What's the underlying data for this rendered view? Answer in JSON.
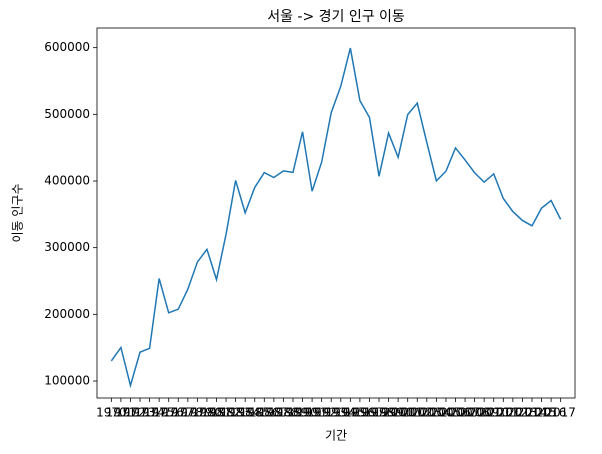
{
  "chart_data": {
    "type": "line",
    "title": "서울 -> 경기 인구 이동",
    "x_label": "기간",
    "y_label": "이동 인구수",
    "categories": [
      "1970",
      "1971",
      "1972",
      "1973",
      "1974",
      "1975",
      "1976",
      "1977",
      "1978",
      "1979",
      "1980",
      "1981",
      "1982",
      "1983",
      "1984",
      "1985",
      "1986",
      "1987",
      "1988",
      "1989",
      "1990",
      "1991",
      "1992",
      "1993",
      "1994",
      "1995",
      "1996",
      "1997",
      "1998",
      "1999",
      "2000",
      "2001",
      "2002",
      "2003",
      "2004",
      "2005",
      "2006",
      "2007",
      "2008",
      "2009",
      "2010",
      "2011",
      "2012",
      "2013",
      "2014",
      "2015",
      "2016",
      "2017"
    ],
    "values": [
      130149,
      150313,
      93333,
      143234,
      149045,
      253705,
      202276,
      207722,
      237684,
      278411,
      297539,
      252073,
      320174,
      400875,
      352238,
      390265,
      412535,
      405220,
      415174,
      412933,
      473889,
      384714,
      428344,
      502584,
      542204,
      599411,
      520566,
      495454,
      407050,
      471841,
      435573,
      499575,
      516765,
      457656,
      400206,
      414621,
      449632,
      431637,
      412408,
      398282,
      410735,
      373771,
      354135,
      340801,
      332785,
      359337,
      370760,
      342433
    ],
    "color": "#1f77b4",
    "ylim": [
      74500,
      629500
    ],
    "yticks": [
      100000,
      200000,
      300000,
      400000,
      500000,
      600000
    ],
    "grid": false
  }
}
